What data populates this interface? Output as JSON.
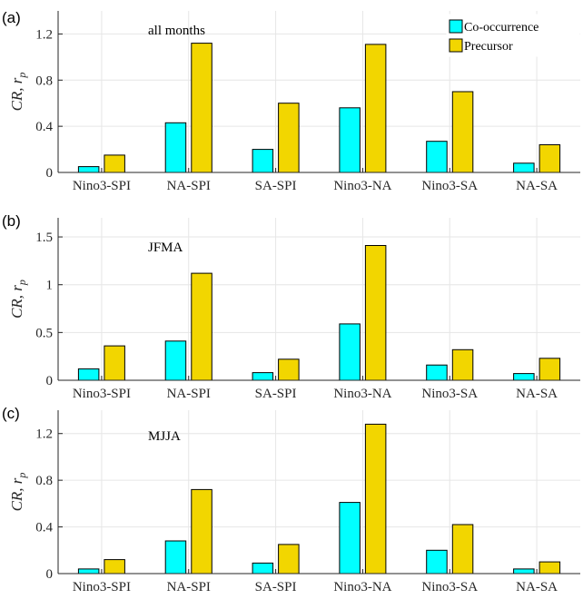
{
  "colors": {
    "co_occurrence": "#00FFFF",
    "precursor": "#F2D600",
    "bar_edge": "#000000",
    "grid": "#E6E6E6",
    "axis": "#262626"
  },
  "legend": {
    "items": [
      {
        "label": "Co-occurrence",
        "color": "#00FFFF"
      },
      {
        "label": "Precursor",
        "color": "#F2D600"
      }
    ]
  },
  "chart_data": [
    {
      "type": "bar",
      "panel_label": "(a)",
      "subtitle": "all months",
      "ylabel": "CR, r_p",
      "categories": [
        "Nino3-SPI",
        "NA-SPI",
        "SA-SPI",
        "Nino3-NA",
        "Nino3-SA",
        "NA-SA"
      ],
      "series": [
        {
          "name": "Co-occurrence",
          "values": [
            0.05,
            0.43,
            0.2,
            0.56,
            0.27,
            0.08
          ]
        },
        {
          "name": "Precursor",
          "values": [
            0.15,
            1.12,
            0.6,
            1.11,
            0.7,
            0.24
          ]
        }
      ],
      "ylim": [
        0,
        1.4
      ],
      "yticks": [
        0,
        0.4,
        0.8,
        1.2
      ],
      "ytick_labels": [
        "0",
        "0.4",
        "0.8",
        "1.2"
      ],
      "grid": true,
      "legend_placement": "top-right"
    },
    {
      "type": "bar",
      "panel_label": "(b)",
      "subtitle": "JFMA",
      "ylabel": "CR, r_p",
      "categories": [
        "Nino3-SPI",
        "NA-SPI",
        "SA-SPI",
        "Nino3-NA",
        "Nino3-SA",
        "NA-SA"
      ],
      "series": [
        {
          "name": "Co-occurrence",
          "values": [
            0.12,
            0.41,
            0.08,
            0.59,
            0.16,
            0.07
          ]
        },
        {
          "name": "Precursor",
          "values": [
            0.36,
            1.12,
            0.22,
            1.41,
            0.32,
            0.23
          ]
        }
      ],
      "ylim": [
        0,
        1.7
      ],
      "yticks": [
        0,
        0.5,
        1,
        1.5
      ],
      "ytick_labels": [
        "0",
        "0.5",
        "1",
        "1.5"
      ],
      "grid": true
    },
    {
      "type": "bar",
      "panel_label": "(c)",
      "subtitle": "MJJA",
      "ylabel": "CR, r_p",
      "categories": [
        "Nino3-SPI",
        "NA-SPI",
        "SA-SPI",
        "Nino3-NA",
        "Nino3-SA",
        "NA-SA"
      ],
      "series": [
        {
          "name": "Co-occurrence",
          "values": [
            0.04,
            0.28,
            0.09,
            0.61,
            0.2,
            0.04
          ]
        },
        {
          "name": "Precursor",
          "values": [
            0.12,
            0.72,
            0.25,
            1.28,
            0.42,
            0.1
          ]
        }
      ],
      "ylim": [
        0,
        1.4
      ],
      "yticks": [
        0,
        0.4,
        0.8,
        1.2
      ],
      "ytick_labels": [
        "0",
        "0.4",
        "0.8",
        "1.2"
      ],
      "grid": true
    }
  ]
}
